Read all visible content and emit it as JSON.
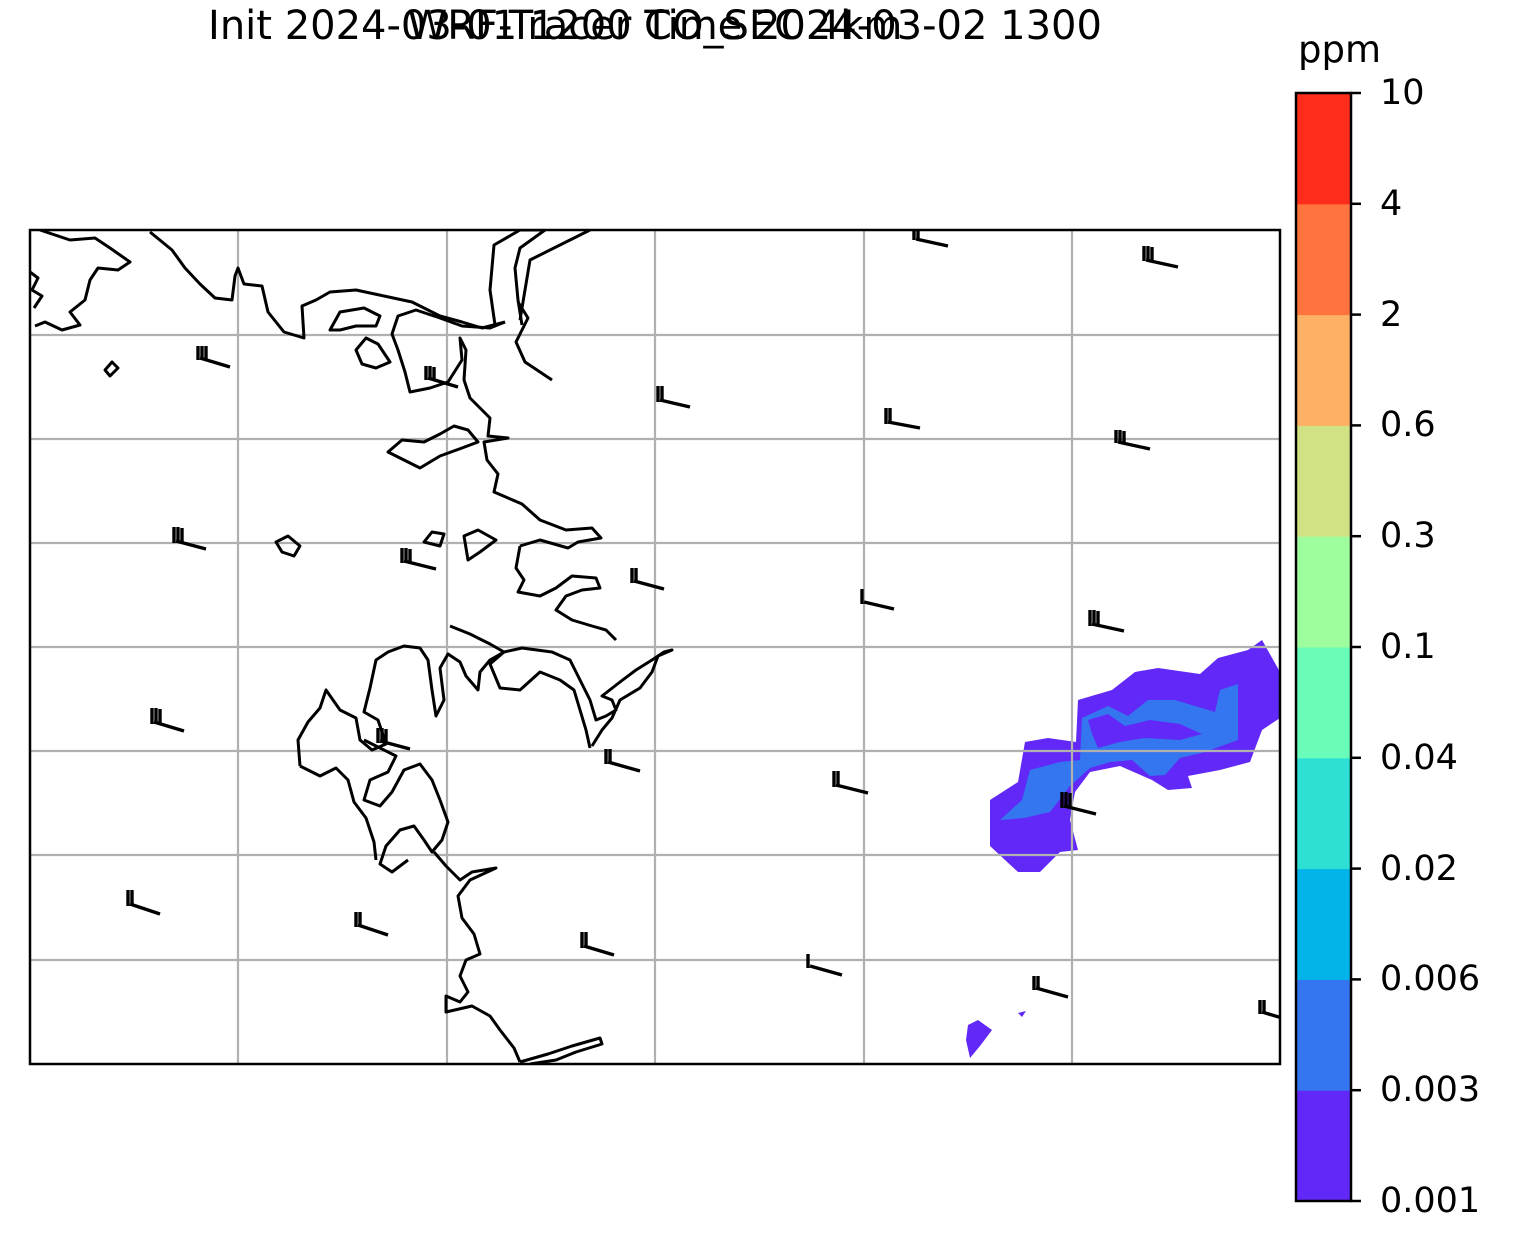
{
  "title_line1": "WRF-Tracer CO_SEC 4km",
  "title_line2": "Init 2024-03-01 1200 Time 2024-03-02 1300",
  "colorbar": {
    "unit": "ppm",
    "levels": [
      "0.001",
      "0.003",
      "0.006",
      "0.02",
      "0.04",
      "0.1",
      "0.3",
      "0.6",
      "2",
      "4",
      "10"
    ],
    "colors": [
      "#6228f7",
      "#3476f0",
      "#01b5ea",
      "#2de0d3",
      "#69fdb9",
      "#9efd9d",
      "#d0e284",
      "#feb064",
      "#fe733e",
      "#fe2c1a"
    ]
  },
  "map": {
    "gridlines": true,
    "coastline_color": "#000000",
    "grid_color": "#b0b0b0",
    "wind_barbs": "black"
  }
}
